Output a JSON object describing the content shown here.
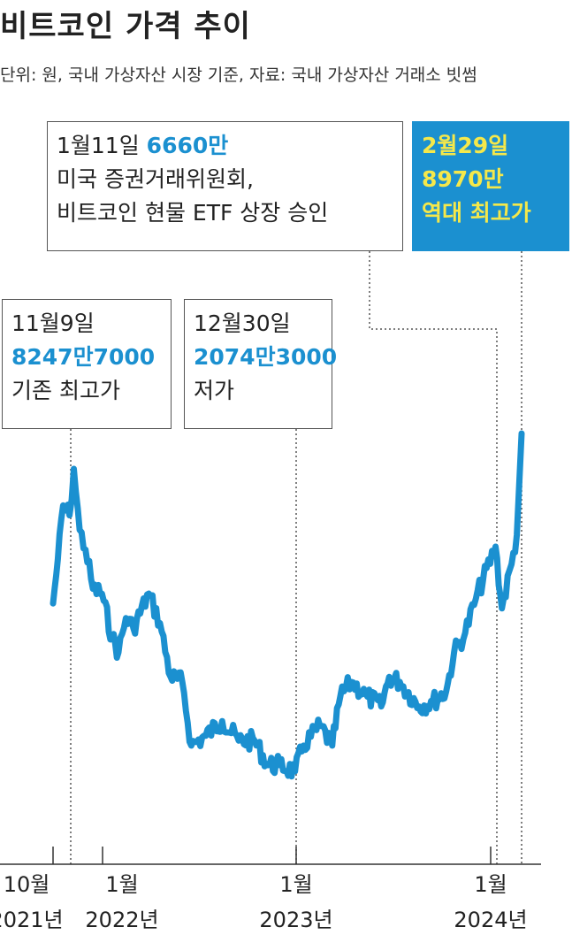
{
  "title": "비트코인 가격 추이",
  "subtitle": "단위: 원, 국내 가상자산 시장 기준, 자료: 국내 가상자산 거래소 빗썸",
  "annotations": [
    {
      "id": "etf",
      "date": "1월11일",
      "value": "6660만",
      "lines": [
        "미국 증권거래위원회,",
        "비트코인 현물 ETF 상장 승인"
      ]
    },
    {
      "id": "ath",
      "date": "2월29일",
      "value": "8970만",
      "lines": [
        "역대 최고가"
      ]
    },
    {
      "id": "prev-high",
      "date": "11월9일",
      "value": "8247만7000",
      "lines": [
        "기존 최고가"
      ]
    },
    {
      "id": "low",
      "date": "12월30일",
      "value": "2074만3000",
      "lines": [
        "저가"
      ]
    }
  ],
  "x_ticks": [
    {
      "month": "10월",
      "year": "2021년"
    },
    {
      "month": "1월",
      "year": "2022년"
    },
    {
      "month": "1월",
      "year": "2023년"
    },
    {
      "month": "1월",
      "year": "2024년"
    }
  ],
  "colors": {
    "line": "#1b90d0",
    "highlight": "#1b90d0",
    "ath_text": "#f5e84a"
  },
  "chart_data": {
    "type": "line",
    "title": "비트코인 가격 추이",
    "ylabel": "원",
    "xlabel": "",
    "x_tick_labels": [
      "10월 2021년",
      "1월 2022년",
      "1월 2023년",
      "1월 2024년"
    ],
    "series": [
      {
        "values": [
          [
            "2021-10-01",
            55000000
          ],
          [
            "2021-10-10",
            64000000
          ],
          [
            "2021-10-20",
            75000000
          ],
          [
            "2021-11-01",
            73000000
          ],
          [
            "2021-11-09",
            82477000
          ],
          [
            "2021-11-20",
            70000000
          ],
          [
            "2021-12-01",
            66000000
          ],
          [
            "2021-12-15",
            58000000
          ],
          [
            "2022-01-01",
            57000000
          ],
          [
            "2022-01-20",
            48000000
          ],
          [
            "2022-02-01",
            45000000
          ],
          [
            "2022-02-15",
            52000000
          ],
          [
            "2022-03-01",
            50000000
          ],
          [
            "2022-03-30",
            57000000
          ],
          [
            "2022-04-20",
            51000000
          ],
          [
            "2022-05-10",
            40000000
          ],
          [
            "2022-06-01",
            39000000
          ],
          [
            "2022-06-18",
            26000000
          ],
          [
            "2022-07-15",
            28000000
          ],
          [
            "2022-08-15",
            31000000
          ],
          [
            "2022-09-15",
            27000000
          ],
          [
            "2022-10-15",
            27000000
          ],
          [
            "2022-11-09",
            22000000
          ],
          [
            "2022-12-01",
            22000000
          ],
          [
            "2022-12-30",
            20743000
          ],
          [
            "2023-01-15",
            26000000
          ],
          [
            "2023-02-15",
            30000000
          ],
          [
            "2023-03-10",
            26000000
          ],
          [
            "2023-03-25",
            36000000
          ],
          [
            "2023-04-15",
            39000000
          ],
          [
            "2023-05-15",
            36000000
          ],
          [
            "2023-06-10",
            34000000
          ],
          [
            "2023-06-25",
            40000000
          ],
          [
            "2023-07-15",
            39000000
          ],
          [
            "2023-08-20",
            34000000
          ],
          [
            "2023-09-15",
            35000000
          ],
          [
            "2023-10-10",
            37000000
          ],
          [
            "2023-10-25",
            45000000
          ],
          [
            "2023-11-15",
            49000000
          ],
          [
            "2023-12-05",
            56000000
          ],
          [
            "2024-01-11",
            66600000
          ],
          [
            "2024-01-23",
            54000000
          ],
          [
            "2024-02-10",
            63000000
          ],
          [
            "2024-02-20",
            69000000
          ],
          [
            "2024-02-29",
            89700000
          ]
        ]
      }
    ]
  }
}
